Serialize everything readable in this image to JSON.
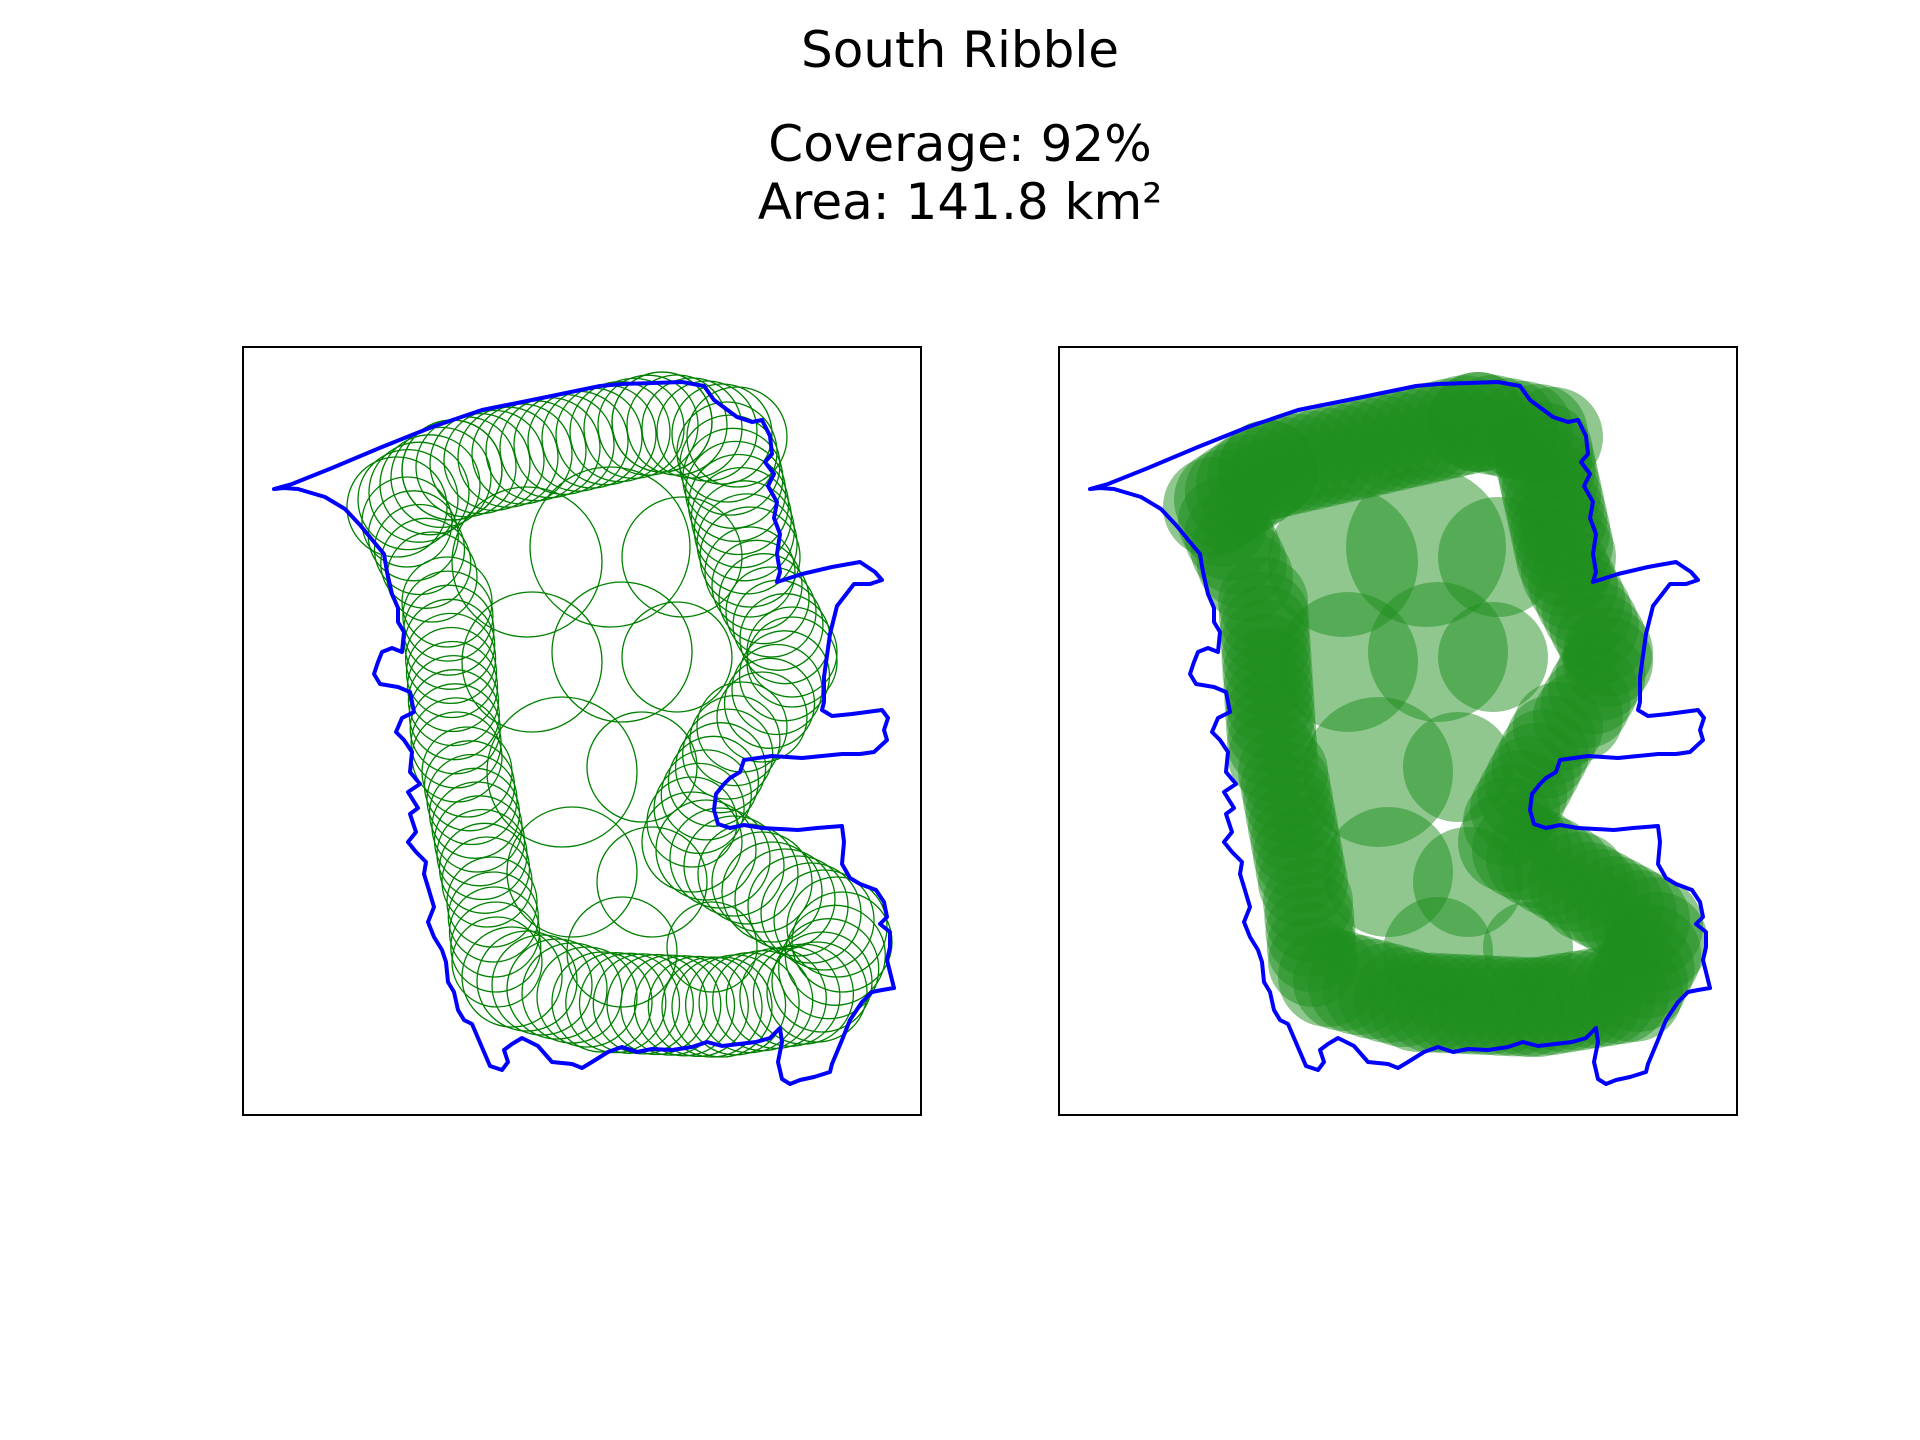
{
  "title": "South Ribble",
  "coverage_label": "Coverage: 92%",
  "area_label": "Area: 141.8 km²",
  "colors": {
    "boundary": "#0000ff",
    "circles": "#008000",
    "text": "#000000",
    "frame": "#000000"
  },
  "panels": [
    {
      "name": "circle-outlines",
      "style": "outline"
    },
    {
      "name": "circle-filled",
      "style": "filled"
    }
  ],
  "map_data": {
    "region": "South Ribble",
    "coverage_percent": 92,
    "area_km2": 141.8
  }
}
